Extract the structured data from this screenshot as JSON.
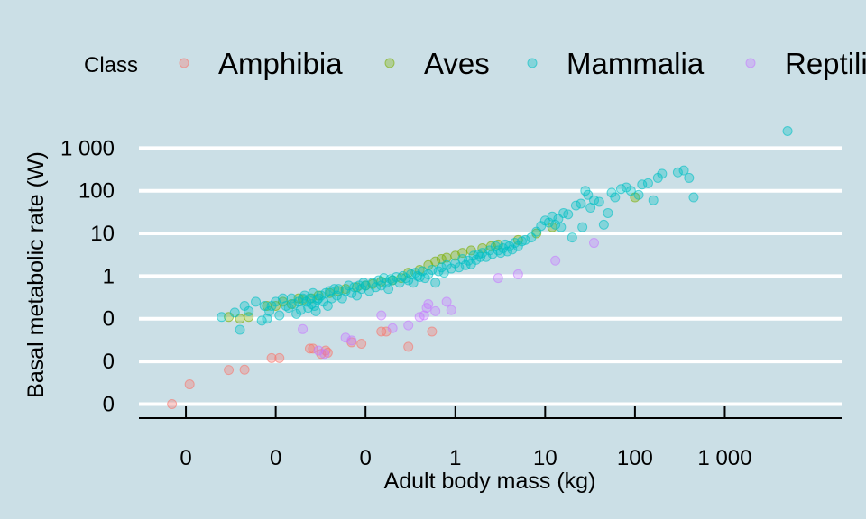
{
  "chart_data": {
    "type": "scatter",
    "title": "",
    "xlabel": "Adult body mass (kg)",
    "ylabel": "Basal metabolic rate (W)",
    "x_scale": "log10",
    "y_scale": "log10",
    "xlim": [
      0.0003,
      20000
    ],
    "ylim": [
      0.00066,
      1500
    ],
    "x_ticks": [
      0.001,
      0.01,
      0.1,
      1,
      10,
      100,
      1000
    ],
    "x_tick_labels": [
      "0",
      "0",
      "0",
      "1",
      "10",
      "100",
      "1 000"
    ],
    "y_ticks": [
      0.001,
      0.01,
      0.1,
      1,
      10,
      100,
      1000
    ],
    "y_tick_labels": [
      "0",
      "0",
      "0",
      "1",
      "10",
      "100",
      "1 000"
    ],
    "grid": "horizontal major",
    "legend_title": "Class",
    "legend_position": "top",
    "series": [
      {
        "name": "Amphibia",
        "color": "#f8766d",
        "points": [
          [
            0.0007,
            0.001
          ],
          [
            0.0011,
            0.0029
          ],
          [
            0.003,
            0.0063
          ],
          [
            0.0045,
            0.0064
          ],
          [
            0.009,
            0.012
          ],
          [
            0.011,
            0.012
          ],
          [
            0.024,
            0.02
          ],
          [
            0.026,
            0.02
          ],
          [
            0.032,
            0.015
          ],
          [
            0.036,
            0.018
          ],
          [
            0.038,
            0.016
          ],
          [
            0.07,
            0.028
          ],
          [
            0.09,
            0.026
          ],
          [
            0.15,
            0.05
          ],
          [
            0.17,
            0.05
          ],
          [
            0.3,
            0.022
          ],
          [
            0.55,
            0.05
          ]
        ]
      },
      {
        "name": "Aves",
        "color": "#7cae00",
        "points": [
          [
            0.003,
            0.11
          ],
          [
            0.004,
            0.1
          ],
          [
            0.005,
            0.11
          ],
          [
            0.008,
            0.2
          ],
          [
            0.01,
            0.2
          ],
          [
            0.012,
            0.25
          ],
          [
            0.015,
            0.22
          ],
          [
            0.018,
            0.3
          ],
          [
            0.02,
            0.28
          ],
          [
            0.025,
            0.3
          ],
          [
            0.03,
            0.35
          ],
          [
            0.04,
            0.4
          ],
          [
            0.05,
            0.45
          ],
          [
            0.06,
            0.5
          ],
          [
            0.08,
            0.55
          ],
          [
            0.1,
            0.6
          ],
          [
            0.12,
            0.65
          ],
          [
            0.15,
            0.75
          ],
          [
            0.2,
            0.8
          ],
          [
            0.25,
            0.9
          ],
          [
            0.3,
            1.2
          ],
          [
            0.4,
            1.4
          ],
          [
            0.5,
            1.8
          ],
          [
            0.6,
            2.2
          ],
          [
            0.7,
            2.5
          ],
          [
            0.8,
            2.7
          ],
          [
            1,
            3
          ],
          [
            1.2,
            3.5
          ],
          [
            1.5,
            4
          ],
          [
            2,
            4.5
          ],
          [
            2.5,
            5
          ],
          [
            3,
            5.5
          ],
          [
            5,
            7
          ],
          [
            8,
            10
          ],
          [
            12,
            14
          ],
          [
            100,
            70
          ]
        ]
      },
      {
        "name": "Mammalia",
        "color": "#00bfc4",
        "points": [
          [
            0.0025,
            0.11
          ],
          [
            0.0035,
            0.14
          ],
          [
            0.004,
            0.055
          ],
          [
            0.0045,
            0.2
          ],
          [
            0.005,
            0.15
          ],
          [
            0.006,
            0.25
          ],
          [
            0.007,
            0.09
          ],
          [
            0.0075,
            0.2
          ],
          [
            0.008,
            0.1
          ],
          [
            0.0085,
            0.15
          ],
          [
            0.009,
            0.2
          ],
          [
            0.01,
            0.25
          ],
          [
            0.011,
            0.12
          ],
          [
            0.012,
            0.3
          ],
          [
            0.013,
            0.2
          ],
          [
            0.014,
            0.18
          ],
          [
            0.015,
            0.3
          ],
          [
            0.016,
            0.22
          ],
          [
            0.017,
            0.13
          ],
          [
            0.018,
            0.25
          ],
          [
            0.019,
            0.16
          ],
          [
            0.02,
            0.3
          ],
          [
            0.021,
            0.35
          ],
          [
            0.022,
            0.25
          ],
          [
            0.023,
            0.18
          ],
          [
            0.024,
            0.3
          ],
          [
            0.025,
            0.22
          ],
          [
            0.026,
            0.4
          ],
          [
            0.027,
            0.2
          ],
          [
            0.028,
            0.15
          ],
          [
            0.029,
            0.28
          ],
          [
            0.03,
            0.3
          ],
          [
            0.032,
            0.35
          ],
          [
            0.034,
            0.25
          ],
          [
            0.036,
            0.4
          ],
          [
            0.038,
            0.2
          ],
          [
            0.04,
            0.45
          ],
          [
            0.042,
            0.3
          ],
          [
            0.045,
            0.5
          ],
          [
            0.048,
            0.35
          ],
          [
            0.05,
            0.5
          ],
          [
            0.055,
            0.3
          ],
          [
            0.06,
            0.45
          ],
          [
            0.065,
            0.6
          ],
          [
            0.07,
            0.4
          ],
          [
            0.075,
            0.55
          ],
          [
            0.08,
            0.35
          ],
          [
            0.085,
            0.6
          ],
          [
            0.09,
            0.5
          ],
          [
            0.095,
            0.7
          ],
          [
            0.1,
            0.6
          ],
          [
            0.11,
            0.45
          ],
          [
            0.12,
            0.7
          ],
          [
            0.13,
            0.55
          ],
          [
            0.14,
            0.8
          ],
          [
            0.15,
            0.6
          ],
          [
            0.16,
            0.9
          ],
          [
            0.17,
            0.7
          ],
          [
            0.18,
            0.5
          ],
          [
            0.19,
            0.85
          ],
          [
            0.2,
            0.8
          ],
          [
            0.22,
            0.95
          ],
          [
            0.24,
            0.7
          ],
          [
            0.26,
            1
          ],
          [
            0.28,
            0.9
          ],
          [
            0.3,
            0.8
          ],
          [
            0.32,
            1.1
          ],
          [
            0.34,
            0.7
          ],
          [
            0.36,
            1.2
          ],
          [
            0.38,
            1
          ],
          [
            0.4,
            0.95
          ],
          [
            0.43,
            1.3
          ],
          [
            0.46,
            0.9
          ],
          [
            0.5,
            1.1
          ],
          [
            0.55,
            1.4
          ],
          [
            0.6,
            0.7
          ],
          [
            0.65,
            1.3
          ],
          [
            0.7,
            1.6
          ],
          [
            0.75,
            1.2
          ],
          [
            0.8,
            1.8
          ],
          [
            0.9,
            1.5
          ],
          [
            1,
            2
          ],
          [
            1.1,
            1.6
          ],
          [
            1.2,
            2.5
          ],
          [
            1.3,
            1.8
          ],
          [
            1.4,
            2.3
          ],
          [
            1.5,
            1.9
          ],
          [
            1.6,
            3
          ],
          [
            1.7,
            2.4
          ],
          [
            1.8,
            3.2
          ],
          [
            1.9,
            2.8
          ],
          [
            2,
            3.5
          ],
          [
            2.2,
            2.8
          ],
          [
            2.4,
            4
          ],
          [
            2.6,
            3.3
          ],
          [
            2.8,
            5
          ],
          [
            3,
            4
          ],
          [
            3.2,
            3.5
          ],
          [
            3.4,
            4.5
          ],
          [
            3.6,
            5.5
          ],
          [
            3.8,
            3.8
          ],
          [
            4,
            5
          ],
          [
            4.3,
            4.2
          ],
          [
            4.6,
            6
          ],
          [
            5,
            5
          ],
          [
            5.5,
            6.5
          ],
          [
            6,
            7
          ],
          [
            7,
            8
          ],
          [
            8,
            11
          ],
          [
            9,
            15
          ],
          [
            10,
            20
          ],
          [
            11,
            18
          ],
          [
            12,
            25
          ],
          [
            13,
            16
          ],
          [
            14,
            22
          ],
          [
            15,
            14
          ],
          [
            16,
            30
          ],
          [
            18,
            28
          ],
          [
            20,
            8
          ],
          [
            22,
            45
          ],
          [
            25,
            50
          ],
          [
            26,
            14
          ],
          [
            28,
            100
          ],
          [
            30,
            80
          ],
          [
            32,
            40
          ],
          [
            35,
            60
          ],
          [
            40,
            55
          ],
          [
            45,
            16
          ],
          [
            50,
            30
          ],
          [
            55,
            90
          ],
          [
            60,
            70
          ],
          [
            70,
            110
          ],
          [
            80,
            120
          ],
          [
            90,
            100
          ],
          [
            110,
            80
          ],
          [
            120,
            140
          ],
          [
            140,
            150
          ],
          [
            160,
            60
          ],
          [
            180,
            200
          ],
          [
            200,
            250
          ],
          [
            300,
            270
          ],
          [
            350,
            300
          ],
          [
            400,
            200
          ],
          [
            450,
            70
          ],
          [
            5000,
            2500
          ]
        ]
      },
      {
        "name": "Reptilia",
        "color": "#c77cff",
        "points": [
          [
            0.02,
            0.057
          ],
          [
            0.03,
            0.018
          ],
          [
            0.035,
            0.015
          ],
          [
            0.06,
            0.036
          ],
          [
            0.07,
            0.031
          ],
          [
            0.15,
            0.12
          ],
          [
            0.2,
            0.06
          ],
          [
            0.3,
            0.07
          ],
          [
            0.4,
            0.11
          ],
          [
            0.45,
            0.12
          ],
          [
            0.48,
            0.18
          ],
          [
            0.5,
            0.22
          ],
          [
            0.6,
            0.15
          ],
          [
            0.8,
            0.25
          ],
          [
            0.9,
            0.16
          ],
          [
            3,
            0.9
          ],
          [
            5,
            1.1
          ],
          [
            13,
            2.3
          ],
          [
            35,
            6
          ]
        ]
      }
    ]
  }
}
